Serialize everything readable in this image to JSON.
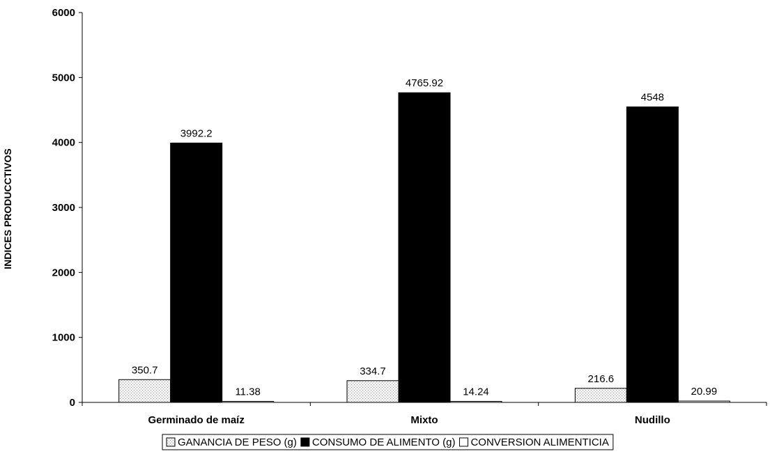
{
  "chart_data": {
    "type": "bar",
    "title": "",
    "xlabel": "",
    "ylabel": "INDICES PRODUCCTIVOS",
    "ylim": [
      0,
      6000
    ],
    "yticks": [
      0,
      1000,
      2000,
      3000,
      4000,
      5000,
      6000
    ],
    "categories": [
      "Germinado de maíz",
      "Mixto",
      "Nudillo"
    ],
    "series": [
      {
        "name": "GANANCIA DE PESO (g)",
        "values": [
          350.7,
          334.7,
          216.6
        ],
        "labels": [
          "350.7",
          "334.7",
          "216.6"
        ],
        "fill": "#e6e6e6",
        "pattern": "dotted"
      },
      {
        "name": "CONSUMO DE ALIMENTO (g)",
        "values": [
          3992.2,
          4765.92,
          4548
        ],
        "labels": [
          "3992.2",
          "4765.92",
          "4548"
        ],
        "fill": "#000000",
        "pattern": "solid"
      },
      {
        "name": "CONVERSION ALIMENTICIA",
        "values": [
          11.38,
          14.24,
          20.99
        ],
        "labels": [
          "11.38",
          "14.24",
          "20.99"
        ],
        "fill": "#ffffff",
        "pattern": "solid"
      }
    ],
    "grid": false,
    "legend_position": "bottom"
  }
}
